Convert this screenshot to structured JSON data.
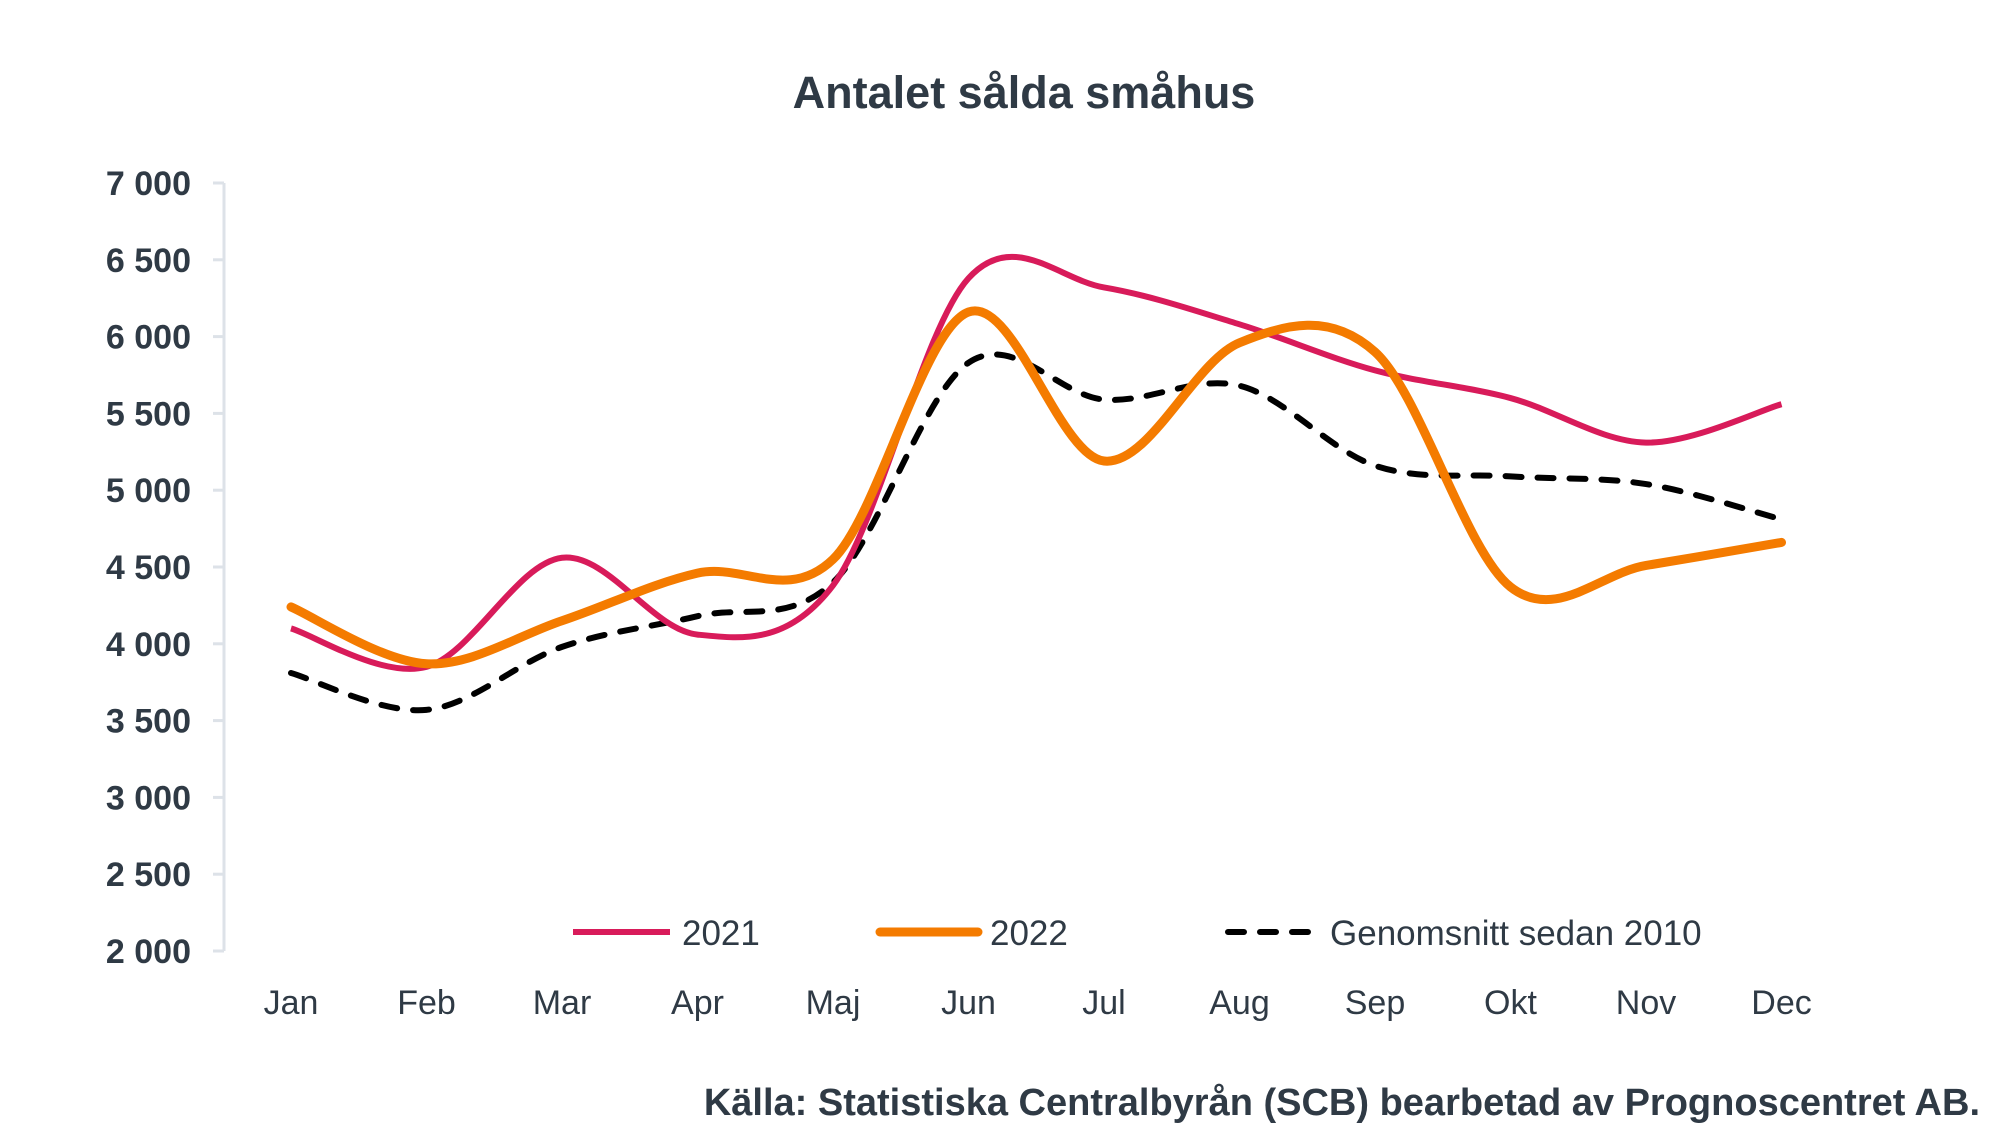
{
  "chart_data": {
    "type": "line",
    "title": "Antalet sålda småhus",
    "xlabel": "",
    "ylabel": "",
    "categories": [
      "Jan",
      "Feb",
      "Mar",
      "Apr",
      "Maj",
      "Jun",
      "Jul",
      "Aug",
      "Sep",
      "Okt",
      "Nov",
      "Dec"
    ],
    "ylim": [
      2000,
      7000
    ],
    "yticks": [
      2000,
      2500,
      3000,
      3500,
      4000,
      4500,
      5000,
      5500,
      6000,
      6500,
      7000
    ],
    "ytick_labels": [
      "2 000",
      "2 500",
      "3 000",
      "3 500",
      "4 000",
      "4 500",
      "5 000",
      "5 500",
      "6 000",
      "6 500",
      "7 000"
    ],
    "grid": false,
    "legend_position": "bottom-inside",
    "series": [
      {
        "name": "2021",
        "color": "#d81b5a",
        "style": "solid",
        "values": [
          4100,
          3850,
          4560,
          4060,
          4380,
          6380,
          6320,
          6080,
          5780,
          5600,
          5310,
          5560
        ]
      },
      {
        "name": "2022",
        "color": "#f47b00",
        "style": "solid-thick",
        "values": [
          4240,
          3870,
          4150,
          4460,
          4550,
          6160,
          5190,
          5960,
          5900,
          4370,
          4510,
          4660
        ]
      },
      {
        "name": "Genomsnitt sedan 2010",
        "color": "#000000",
        "style": "dashed",
        "values": [
          3810,
          3570,
          3980,
          4180,
          4400,
          5830,
          5590,
          5680,
          5160,
          5090,
          5040,
          4810
        ]
      }
    ],
    "source": "Källa: Statistiska Centralbyrån (SCB) bearbetad av Prognoscentret AB."
  }
}
